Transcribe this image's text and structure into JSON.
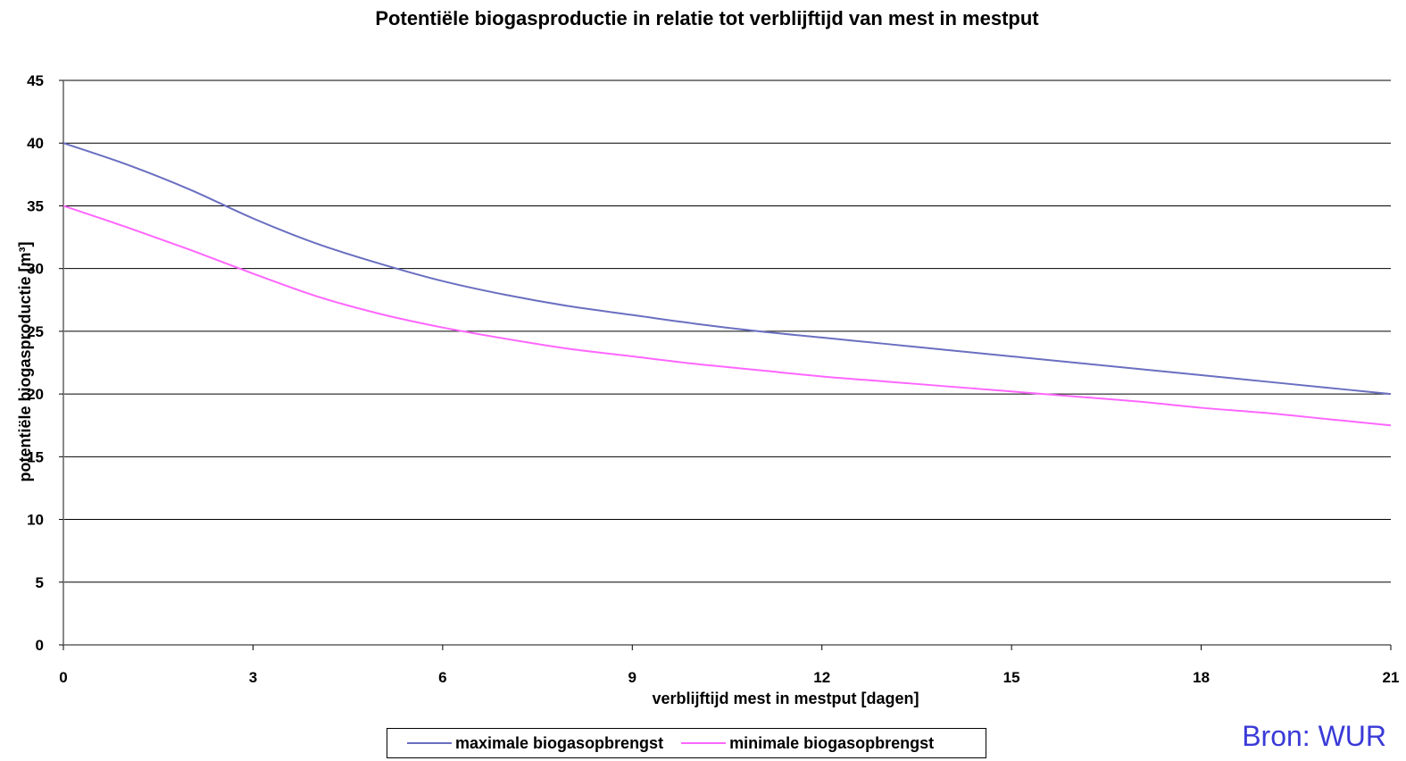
{
  "chart_data": {
    "type": "line",
    "title": "Potentiële biogasproductie  in relatie tot verblijftijd van mest in mestput",
    "xlabel": "verblijftijd mest in mestput [dagen]",
    "ylabel": "potentiële biogasproductie [m³]",
    "xlim": [
      0,
      21
    ],
    "ylim": [
      0,
      45
    ],
    "x_ticks": [
      "0",
      "3",
      "6",
      "9",
      "12",
      "15",
      "18",
      "21"
    ],
    "y_ticks": [
      "0",
      "5",
      "10",
      "15",
      "20",
      "25",
      "30",
      "35",
      "40",
      "45"
    ],
    "grid": "horizontal",
    "legend_position": "bottom",
    "series": [
      {
        "name": "maximale biogasopbrengst",
        "color": "#6a6fc0",
        "x": [
          0,
          1,
          2,
          3,
          4,
          5,
          6,
          7,
          8,
          9,
          10,
          11,
          12,
          13,
          14,
          15,
          16,
          17,
          18,
          19,
          20,
          21
        ],
        "y": [
          40,
          38.3,
          36.3,
          34.0,
          32.0,
          30.4,
          29.0,
          27.9,
          27.0,
          26.3,
          25.6,
          25.0,
          24.5,
          24.0,
          23.5,
          23.0,
          22.5,
          22.0,
          21.5,
          21.0,
          20.5,
          20.0
        ]
      },
      {
        "name": "minimale biogasopbrengst",
        "color": "#ff66ff",
        "x": [
          0,
          1,
          2,
          3,
          4,
          5,
          6,
          7,
          8,
          9,
          10,
          11,
          12,
          13,
          14,
          15,
          16,
          17,
          18,
          19,
          20,
          21
        ],
        "y": [
          35,
          33.3,
          31.5,
          29.6,
          27.8,
          26.4,
          25.3,
          24.4,
          23.6,
          23.0,
          22.4,
          21.9,
          21.4,
          21.0,
          20.6,
          20.2,
          19.8,
          19.4,
          18.9,
          18.5,
          18.0,
          17.5
        ]
      }
    ]
  },
  "source": "Bron: WUR"
}
